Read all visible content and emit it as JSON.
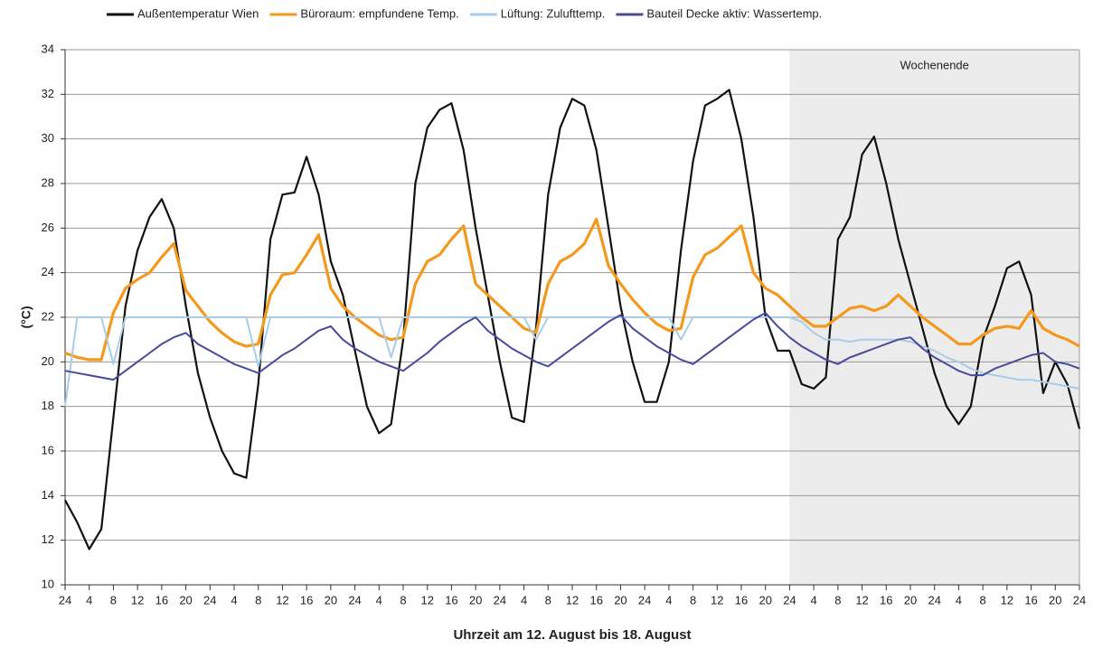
{
  "chart_data": {
    "type": "line",
    "x_label": "Uhrzeit am 12. August bis 18. August",
    "y_label": "(°C)",
    "shaded_region": {
      "label": "Wochenende",
      "xlim": [
        120,
        168
      ]
    },
    "xlim": [
      0,
      168
    ],
    "ylim": [
      10,
      34
    ],
    "yticks": [
      10,
      12,
      14,
      16,
      18,
      20,
      22,
      24,
      26,
      28,
      30,
      32,
      34
    ],
    "grid": true,
    "xticks": [
      {
        "value": 0,
        "label": "24"
      },
      4,
      8,
      12,
      16,
      20,
      24,
      {
        "value": 28,
        "label": "4"
      },
      {
        "value": 32,
        "label": "8"
      },
      {
        "value": 36,
        "label": "12"
      },
      {
        "value": 40,
        "label": "16"
      },
      {
        "value": 44,
        "label": "20"
      },
      {
        "value": 48,
        "label": "24"
      },
      {
        "value": 52,
        "label": "4"
      },
      {
        "value": 56,
        "label": "8"
      },
      {
        "value": 60,
        "label": "12"
      },
      {
        "value": 64,
        "label": "16"
      },
      {
        "value": 68,
        "label": "20"
      },
      {
        "value": 72,
        "label": "24"
      },
      {
        "value": 76,
        "label": "4"
      },
      {
        "value": 80,
        "label": "8"
      },
      {
        "value": 84,
        "label": "12"
      },
      {
        "value": 88,
        "label": "16"
      },
      {
        "value": 92,
        "label": "20"
      },
      {
        "value": 96,
        "label": "24"
      },
      {
        "value": 100,
        "label": "4"
      },
      {
        "value": 104,
        "label": "8"
      },
      {
        "value": 108,
        "label": "12"
      },
      {
        "value": 112,
        "label": "16"
      },
      {
        "value": 116,
        "label": "20"
      },
      {
        "value": 120,
        "label": "24"
      },
      {
        "value": 124,
        "label": "4"
      },
      {
        "value": 128,
        "label": "8"
      },
      {
        "value": 132,
        "label": "12"
      },
      {
        "value": 136,
        "label": "16"
      },
      {
        "value": 140,
        "label": "20"
      },
      {
        "value": 144,
        "label": "24"
      },
      {
        "value": 148,
        "label": "4"
      },
      {
        "value": 152,
        "label": "8"
      },
      {
        "value": 156,
        "label": "12"
      },
      {
        "value": 160,
        "label": "16"
      },
      {
        "value": 164,
        "label": "20"
      },
      {
        "value": 168,
        "label": "24"
      }
    ],
    "x": [
      0,
      2,
      4,
      6,
      8,
      10,
      12,
      14,
      16,
      18,
      20,
      22,
      24,
      26,
      28,
      30,
      32,
      34,
      36,
      38,
      40,
      42,
      44,
      46,
      48,
      50,
      52,
      54,
      56,
      58,
      60,
      62,
      64,
      66,
      68,
      70,
      72,
      74,
      76,
      78,
      80,
      82,
      84,
      86,
      88,
      90,
      92,
      94,
      96,
      98,
      100,
      102,
      104,
      106,
      108,
      110,
      112,
      114,
      116,
      118,
      120,
      122,
      124,
      126,
      128,
      130,
      132,
      134,
      136,
      138,
      140,
      142,
      144,
      146,
      148,
      150,
      152,
      154,
      156,
      158,
      160,
      162,
      164,
      166,
      168
    ],
    "series": [
      {
        "name": "Außentemperatur Wien",
        "color": "#111111",
        "width": 2.2,
        "values": [
          13.8,
          12.8,
          11.6,
          12.5,
          17.5,
          22.5,
          25,
          26.5,
          27.3,
          26,
          22.5,
          19.5,
          17.5,
          16,
          15,
          14.8,
          19,
          25.5,
          27.5,
          27.6,
          29.2,
          27.5,
          24.5,
          23,
          20.5,
          18,
          16.8,
          17.2,
          21,
          28,
          30.5,
          31.3,
          31.6,
          29.5,
          26,
          23,
          20,
          17.5,
          17.3,
          21.5,
          27.5,
          30.5,
          31.8,
          31.5,
          29.5,
          26,
          22.5,
          20,
          18.2,
          18.2,
          20,
          25,
          29,
          31.5,
          31.8,
          32.2,
          30,
          26.5,
          22,
          20.5,
          20.5,
          19,
          18.8,
          19.3,
          25.5,
          26.5,
          29.3,
          30.1,
          28,
          25.5,
          23.5,
          21.5,
          19.5,
          18,
          17.2,
          18,
          21,
          22.5,
          24.2,
          24.5,
          23,
          18.6,
          20,
          19,
          17
        ]
      },
      {
        "name": "Büroraum: empfundene Temp.",
        "color": "#f39a1e",
        "width": 3.2,
        "values": [
          20.4,
          20.2,
          20.1,
          20.1,
          22.2,
          23.3,
          23.7,
          24,
          24.7,
          25.3,
          23.2,
          22.5,
          21.8,
          21.3,
          20.9,
          20.7,
          20.8,
          23,
          23.9,
          24,
          24.8,
          25.7,
          23.3,
          22.5,
          22,
          21.6,
          21.2,
          21,
          21.1,
          23.5,
          24.5,
          24.8,
          25.5,
          26.1,
          23.5,
          23,
          22.5,
          22,
          21.5,
          21.3,
          23.5,
          24.5,
          24.8,
          25.3,
          26.4,
          24.3,
          23.5,
          22.8,
          22.2,
          21.7,
          21.4,
          21.5,
          23.8,
          24.8,
          25.1,
          25.6,
          26.1,
          24,
          23.3,
          23,
          22.5,
          22,
          21.6,
          21.6,
          22,
          22.4,
          22.5,
          22.3,
          22.5,
          23,
          22.5,
          22,
          21.6,
          21.2,
          20.8,
          20.8,
          21.2,
          21.5,
          21.6,
          21.5,
          22.3,
          21.5,
          21.2,
          21,
          20.7
        ]
      },
      {
        "name": "Lüftung: Zulufttemp.",
        "color": "#a9cde8",
        "width": 2,
        "values": [
          18,
          22,
          22,
          22,
          19.9,
          22,
          22,
          22,
          22,
          22,
          22,
          22,
          22,
          22,
          22,
          22,
          19.8,
          22,
          22,
          22,
          22,
          22,
          22,
          22,
          22,
          22,
          22,
          20.2,
          22,
          22,
          22,
          22,
          22,
          22,
          22,
          22,
          22,
          22,
          22,
          21,
          22,
          22,
          22,
          22,
          22,
          22,
          22,
          22,
          22,
          22,
          22,
          21,
          22,
          22,
          22,
          22,
          22,
          22,
          22,
          22,
          22,
          21.8,
          21.3,
          21,
          21,
          20.9,
          21,
          21,
          21,
          21,
          20.9,
          20.7,
          20.5,
          20.2,
          20,
          19.7,
          19.5,
          19.4,
          19.3,
          19.2,
          19.2,
          19.1,
          19,
          18.9,
          18.8
        ]
      },
      {
        "name": "Bauteil Decke aktiv: Wassertemp.",
        "color": "#4a4a9c",
        "width": 2,
        "values": [
          19.6,
          19.5,
          19.4,
          19.3,
          19.2,
          19.6,
          20,
          20.4,
          20.8,
          21.1,
          21.3,
          20.8,
          20.5,
          20.2,
          19.9,
          19.7,
          19.5,
          19.9,
          20.3,
          20.6,
          21,
          21.4,
          21.6,
          21,
          20.6,
          20.3,
          20,
          19.8,
          19.6,
          20,
          20.4,
          20.9,
          21.3,
          21.7,
          22,
          21.4,
          21,
          20.6,
          20.3,
          20,
          19.8,
          20.2,
          20.6,
          21,
          21.4,
          21.8,
          22.1,
          21.5,
          21.1,
          20.7,
          20.4,
          20.1,
          19.9,
          20.3,
          20.7,
          21.1,
          21.5,
          21.9,
          22.2,
          21.6,
          21.1,
          20.7,
          20.4,
          20.1,
          19.9,
          20.2,
          20.4,
          20.6,
          20.8,
          21,
          21.1,
          20.6,
          20.2,
          19.9,
          19.6,
          19.4,
          19.4,
          19.7,
          19.9,
          20.1,
          20.3,
          20.4,
          20,
          19.9,
          19.7
        ]
      }
    ]
  }
}
